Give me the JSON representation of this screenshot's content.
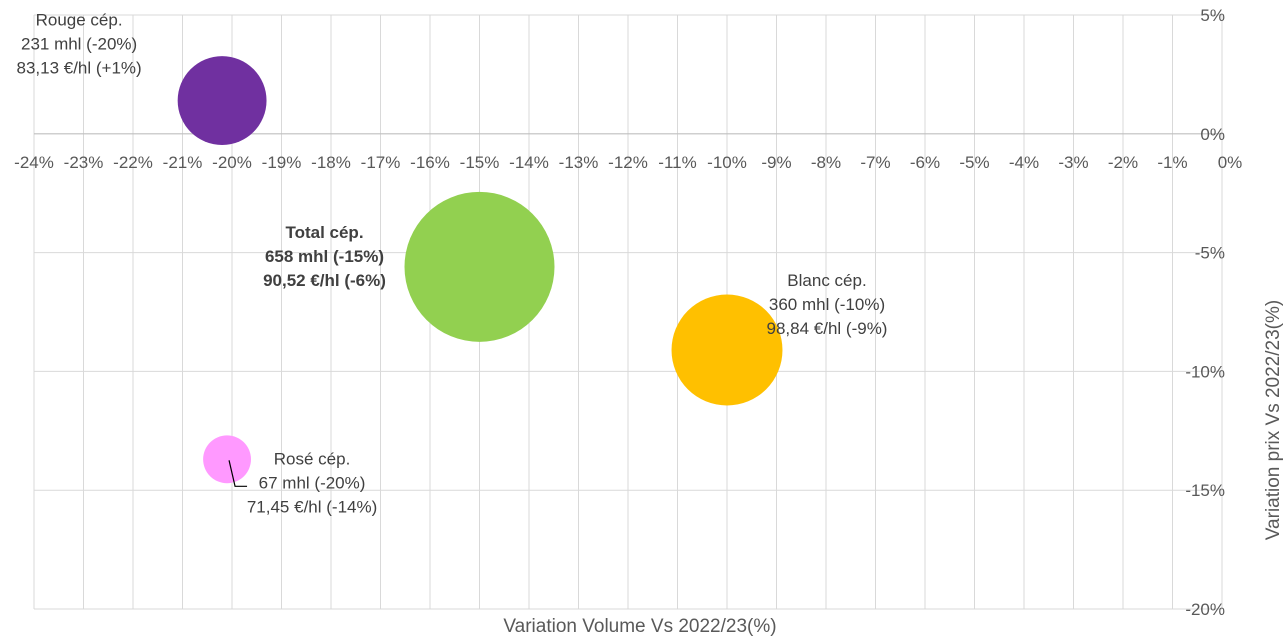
{
  "chart_data": {
    "type": "bubble",
    "xlabel": "Variation Volume Vs 2022/23(%)",
    "ylabel": "Variation prix Vs 2022/23(%)",
    "xlim": [
      -24,
      0
    ],
    "ylim": [
      -20,
      5
    ],
    "x_ticks": [
      -24,
      -23,
      -22,
      -21,
      -20,
      -19,
      -18,
      -17,
      -16,
      -15,
      -14,
      -13,
      -12,
      -11,
      -10,
      -9,
      -8,
      -7,
      -6,
      -5,
      -4,
      -3,
      -2,
      -1,
      0
    ],
    "y_ticks": [
      5,
      0,
      -5,
      -10,
      -15,
      -20
    ],
    "tick_suffix": "%",
    "grid": true,
    "series": [
      {
        "name": "Rouge cép.",
        "x": -20.2,
        "y": 1.4,
        "volume": 231,
        "color": "#7030a0",
        "label_lines": [
          "Rouge cép.",
          "231 mhl (-20%)",
          "83,13 €/hl (+1%)"
        ],
        "bold": false
      },
      {
        "name": "Total cép.",
        "x": -15,
        "y": -5.6,
        "volume": 658,
        "color": "#92d050",
        "label_lines": [
          "Total cép.",
          "658 mhl (-15%)",
          "90,52 €/hl (-6%)"
        ],
        "bold": true
      },
      {
        "name": "Blanc cép.",
        "x": -10,
        "y": -9.1,
        "volume": 360,
        "color": "#ffc000",
        "label_lines": [
          "Blanc cép.",
          "360 mhl (-10%)",
          "98,84 €/hl (-9%)"
        ],
        "bold": false
      },
      {
        "name": "Rosé cép.",
        "x": -20.1,
        "y": -13.7,
        "volume": 67,
        "color": "#ff99ff",
        "label_lines": [
          "Rosé cép.",
          "67 mhl (-20%)",
          "71,45 €/hl (-14%)"
        ],
        "bold": false
      }
    ]
  }
}
